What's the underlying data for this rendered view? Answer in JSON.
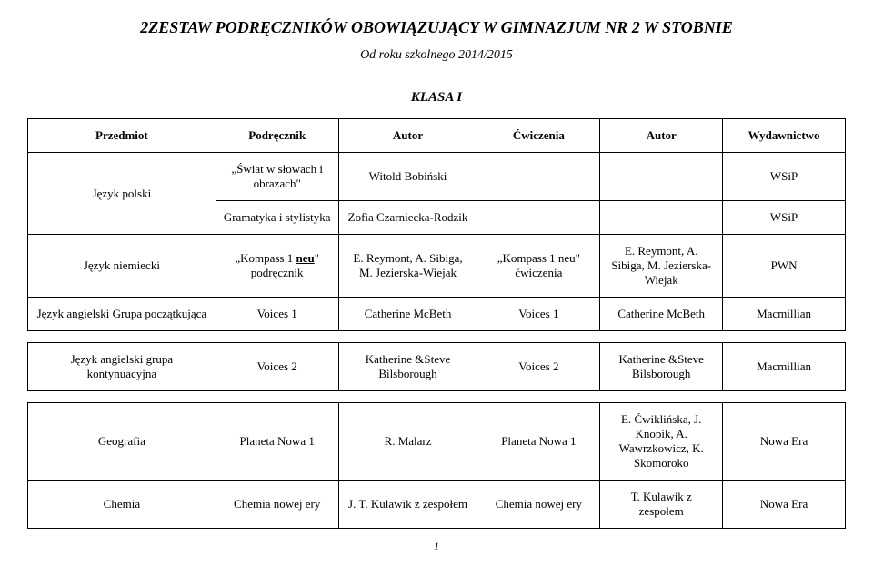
{
  "main_title": "2ZESTAW PODRĘCZNIKÓW OBOWIĄZUJĄCY W GIMNAZJUM NR 2 W STOBNIE",
  "subtitle": "Od roku szkolnego 2014/2015",
  "klasa": "KLASA I",
  "headers": {
    "subject": "Przedmiot",
    "book": "Podręcznik",
    "author": "Autor",
    "exercise": "Ćwiczenia",
    "author2": "Autor",
    "publisher": "Wydawnictwo"
  },
  "polski": {
    "subject": "Język polski",
    "book1": "„Świat w słowach i obrazach\"",
    "author1": "Witold Bobiński",
    "publisher1": "WSiP",
    "book2": "Gramatyka i stylistyka",
    "author2": "Zofia Czarniecka-Rodzik",
    "publisher2": "WSiP"
  },
  "niemiecki": {
    "subject": "Język niemiecki",
    "book_prefix": "„Kompass 1 ",
    "book_bold": "neu",
    "book_suffix": "\" podręcznik",
    "author": "E. Reymont, A. Sibiga, M. Jezierska-Wiejak",
    "exercise": "„Kompass 1 neu\" ćwiczenia",
    "author2": "E. Reymont, A. Sibiga, M. Jezierska-Wiejak",
    "publisher": "PWN"
  },
  "ang_pocz": {
    "subject": "Język angielski Grupa początkująca",
    "book": "Voices 1",
    "author": "Catherine McBeth",
    "exercise": "Voices 1",
    "author2": "Catherine McBeth",
    "publisher": "Macmillian"
  },
  "ang_kont": {
    "subject": "Język angielski grupa kontynuacyjna",
    "book": "Voices 2",
    "author": "Katherine &Steve Bilsborough",
    "exercise": "Voices 2",
    "author2": "Katherine &Steve Bilsborough",
    "publisher": "Macmillian"
  },
  "geografia": {
    "subject": "Geografia",
    "book": "Planeta Nowa 1",
    "author": "R. Malarz",
    "exercise": "Planeta Nowa 1",
    "author2": "E. Ćwiklińska, J. Knopik, A. Wawrzkowicz, K. Skomoroko",
    "publisher": "Nowa Era"
  },
  "chemia": {
    "subject": "Chemia",
    "book": "Chemia nowej ery",
    "author": "J. T. Kulawik z zespołem",
    "exercise": "Chemia nowej ery",
    "author2": "T. Kulawik z zespołem",
    "publisher": "Nowa Era"
  },
  "page_num": "1"
}
